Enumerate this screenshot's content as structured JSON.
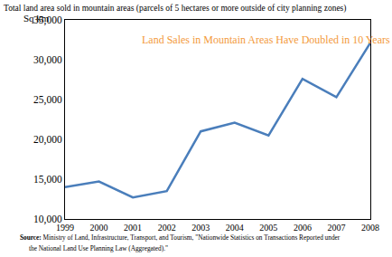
{
  "chart_data": {
    "type": "line",
    "title": "Land Sales in Mountain Areas Have Doubled in 10 Years",
    "subtitle": "Total land area sold in mountain areas (parcels of 5 hectares or more outside of city planning zones)",
    "y_label": "Sq km",
    "source": [
      "Source: Ministry of Land, Infrastructure, Transport, and Tourism, \"Nationwide Statistics on Transactions Reported under",
      "the National Land Use Planning Law (Aggregated).\""
    ],
    "categories": [
      "1999",
      "2000",
      "2001",
      "2002",
      "2003",
      "2004",
      "2005",
      "2006",
      "2007",
      "2008"
    ],
    "values": [
      14000,
      14700,
      12700,
      13500,
      21000,
      22100,
      20500,
      27600,
      25300,
      32100
    ],
    "color": "#4a7ebb",
    "ylim": [
      10000,
      35000
    ],
    "yticks": [
      {
        "value": 10000,
        "label": "10,000"
      },
      {
        "value": 15000,
        "label": "15,000"
      },
      {
        "value": 20000,
        "label": "20,000"
      },
      {
        "value": 25000,
        "label": "25,000"
      },
      {
        "value": 30000,
        "label": "30,000"
      },
      {
        "value": 35000,
        "label": "35,000"
      }
    ],
    "grid": false
  }
}
